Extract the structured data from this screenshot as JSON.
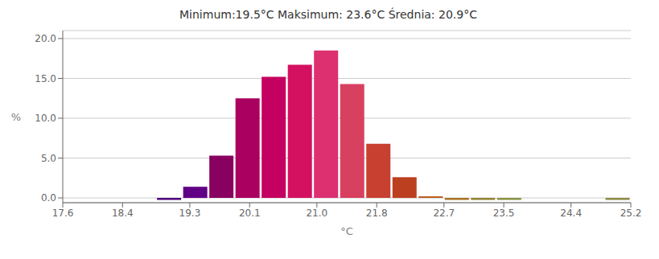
{
  "chart_data": {
    "type": "bar",
    "title": "Minimum:19.5°C    Maksimum: 23.6°C    Średnia: 20.9°C",
    "xlabel": "°C",
    "ylabel": "%",
    "x": [
      19.025,
      19.375,
      19.725,
      20.075,
      20.425,
      20.775,
      21.125,
      21.475,
      21.825,
      22.175,
      22.525,
      22.875,
      23.225,
      23.575,
      25.025
    ],
    "values": [
      -0.25,
      1.4,
      5.3,
      12.5,
      15.2,
      16.7,
      18.5,
      14.3,
      6.8,
      2.6,
      0.2,
      -0.25,
      -0.25,
      -0.25,
      -0.25
    ],
    "colors": [
      "#4B0075",
      "#600085",
      "#880060",
      "#AA0060",
      "#C40060",
      "#D41060",
      "#DC3070",
      "#D84060",
      "#C84030",
      "#BC4020",
      "#B85818",
      "#A87020",
      "#908030",
      "#889040",
      "#888840"
    ],
    "xlim": [
      17.6,
      25.2
    ],
    "ylim": [
      -0.6,
      21.0
    ],
    "xticks": [
      17.6,
      18.4,
      19.3,
      20.1,
      {
        "value": 21.0,
        "label": "21.0"
      },
      21.8,
      22.7,
      23.5,
      24.4,
      25.2
    ],
    "yticks": [
      {
        "value": 0.0,
        "label": "0.0"
      },
      {
        "value": 5.0,
        "label": "5.0"
      },
      {
        "value": 10.0,
        "label": "10.0"
      },
      {
        "value": 15.0,
        "label": "15.0"
      },
      {
        "value": 20.0,
        "label": "20.0"
      }
    ],
    "grid": true
  }
}
